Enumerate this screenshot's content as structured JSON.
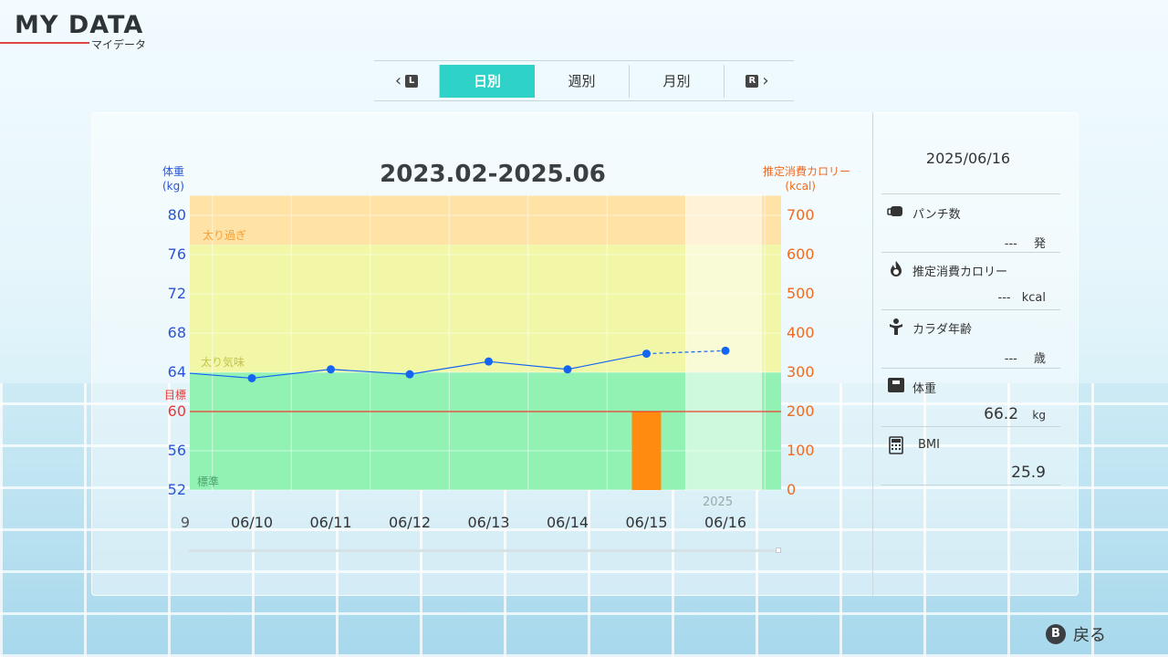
{
  "app": {
    "title": "MY DATA",
    "subtitle": "マイデータ"
  },
  "tabs": {
    "left_key": "L",
    "right_key": "R",
    "items": [
      {
        "label": "日別",
        "active": true
      },
      {
        "label": "週別",
        "active": false
      },
      {
        "label": "月別",
        "active": false
      }
    ]
  },
  "chart": {
    "title": "2023.02-2025.06",
    "y1_label_line1": "体重",
    "y1_label_line2": "(kg)",
    "y2_label_line1": "推定消費カロリー",
    "y2_label_line2": "(kcal)",
    "goal_label": "目標",
    "zone_labels": {
      "over": "太り過ぎ",
      "slightly_over": "太り気味",
      "standard": "標準"
    },
    "year_label": "2025",
    "partial_tick": "9"
  },
  "chart_data": {
    "type": "line",
    "title": "2023.02-2025.06",
    "categories": [
      "06/10",
      "06/11",
      "06/12",
      "06/13",
      "06/14",
      "06/15",
      "06/16"
    ],
    "series": [
      {
        "axis": "left",
        "unit": "kg",
        "values": [
          63.4,
          64.3,
          63.8,
          65.1,
          64.3,
          65.9,
          66.2
        ],
        "color": "#1565f5",
        "dashed_last_segment": true
      }
    ],
    "bars": [
      {
        "axis": "right",
        "unit": "kcal",
        "category": "06/15",
        "value": 200,
        "color": "#ff8c10"
      }
    ],
    "goal": 60,
    "zones": [
      {
        "label": "太り過ぎ",
        "from": 77,
        "to": 82,
        "color": "#ffe2a6"
      },
      {
        "label": "太り気味",
        "from": 64,
        "to": 77,
        "color": "#f1f7a6"
      },
      {
        "label": "標準",
        "from": 52,
        "to": 64,
        "color": "#92f2b4"
      }
    ],
    "y1_ticks": [
      80,
      76,
      72,
      68,
      64,
      60,
      56,
      52
    ],
    "y2_ticks": [
      700,
      600,
      500,
      400,
      300,
      200,
      100,
      0
    ],
    "ylim": [
      52,
      82
    ],
    "y2lim": [
      0,
      750
    ],
    "xlabel": "",
    "ylabel": "体重 (kg)",
    "y2label": "推定消費カロリー (kcal)"
  },
  "sidebar": {
    "date": "2025/06/16",
    "items": [
      {
        "label": "パンチ数",
        "value": "---",
        "unit": "発",
        "icon": "punch-icon"
      },
      {
        "label": "推定消費カロリー",
        "value": "---",
        "unit": "kcal",
        "icon": "flame-icon"
      },
      {
        "label": "カラダ年齢",
        "value": "---",
        "unit": "歳",
        "icon": "muscle-icon"
      },
      {
        "label": "体重",
        "value": "66.2",
        "unit": "kg",
        "icon": "scale-icon"
      },
      {
        "label": "BMI",
        "value": "25.9",
        "unit": "",
        "icon": "calculator-icon"
      }
    ]
  },
  "footer": {
    "back_key": "B",
    "back_label": "戻る"
  }
}
